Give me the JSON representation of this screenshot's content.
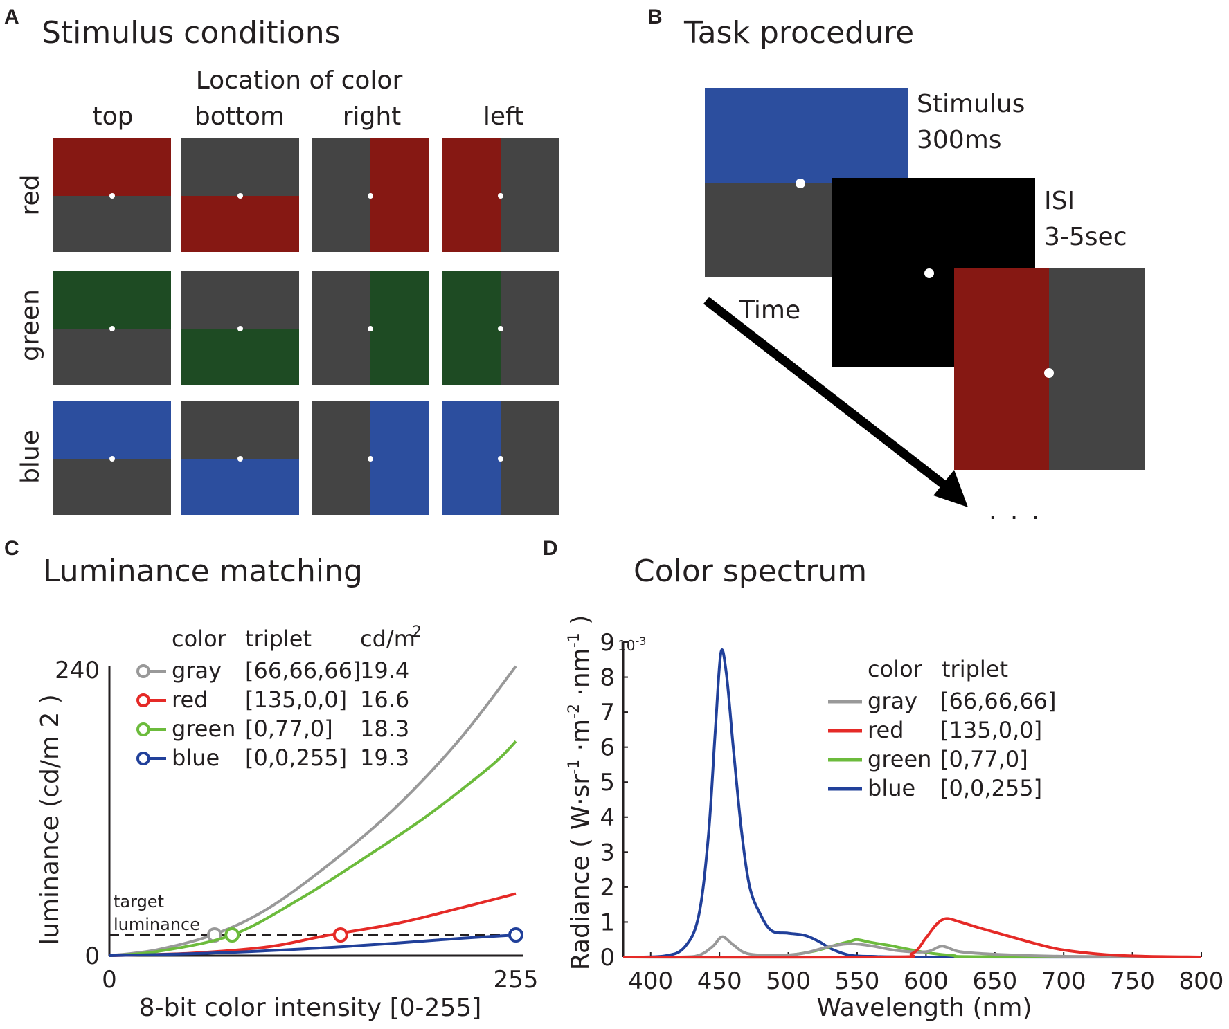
{
  "panelA": {
    "letter": "A",
    "title": "Stimulus conditions",
    "location_header": "Location of color",
    "columns": [
      "top",
      "bottom",
      "right",
      "left"
    ],
    "rows": [
      {
        "label": "red",
        "color": "#861813"
      },
      {
        "label": "green",
        "color": "#1e4b23"
      },
      {
        "label": "blue",
        "color": "#2c4e9e"
      }
    ],
    "gray_color": "#444444"
  },
  "panelB": {
    "letter": "B",
    "title": "Task procedure",
    "stimulus_label": "Stimulus",
    "stimulus_duration": "300ms",
    "isi_label": "ISI",
    "isi_duration": "3-5sec",
    "time_label": "Time",
    "ellipsis": ". . .",
    "blue": "#2c4e9e",
    "red": "#861813",
    "gray": "#444444",
    "black": "#000000"
  },
  "chart_data": [
    {
      "letter": "C",
      "title": "Luminance matching",
      "type": "line",
      "xlabel": "8-bit color intensity [0-255]",
      "ylabel": "luminance (cd/m 2 )",
      "xlim": [
        0,
        255
      ],
      "ylim": [
        0,
        240
      ],
      "xticks": [
        "0",
        "255"
      ],
      "yticks": [
        "0",
        "240"
      ],
      "target_label_line1": "target",
      "target_label_line2": "luminance",
      "target_luminance": 17.4,
      "legend_headers": {
        "color": "color",
        "triplet": "triplet",
        "unit": "cd/m",
        "unit_sup": "2"
      },
      "series": [
        {
          "name": "gray",
          "triplet": "[66,66,66]",
          "value": "19.4",
          "color": "#999999",
          "x": [
            0,
            30,
            66,
            100,
            140,
            180,
            220,
            255
          ],
          "y": [
            0,
            5,
            18,
            40,
            79,
            125,
            182,
            243
          ],
          "marker_x": 66,
          "marker_y": 17.4
        },
        {
          "name": "red",
          "triplet": "[135,0,0]",
          "value": "16.6",
          "color": "#e52a27",
          "x": [
            0,
            50,
            100,
            135,
            180,
            220,
            255
          ],
          "y": [
            0,
            2,
            7.5,
            16.6,
            27,
            40,
            52
          ],
          "marker_x": 145,
          "marker_y": 17.4
        },
        {
          "name": "green",
          "triplet": "[0,77,0]",
          "value": "18.3",
          "color": "#6cbb3c",
          "x": [
            0,
            30,
            77,
            120,
            160,
            200,
            240,
            255
          ],
          "y": [
            0,
            3.5,
            17.4,
            48,
            82,
            118,
            160,
            180
          ],
          "marker_x": 77,
          "marker_y": 17.4
        },
        {
          "name": "blue",
          "triplet": "[0,0,255]",
          "value": "19.3",
          "color": "#21409a",
          "x": [
            0,
            60,
            120,
            180,
            220,
            255
          ],
          "y": [
            0,
            2,
            5.5,
            10.5,
            14.5,
            17.4
          ],
          "marker_x": 255,
          "marker_y": 17.4
        }
      ]
    },
    {
      "letter": "D",
      "title": "Color spectrum",
      "type": "line",
      "xlabel": "Wavelength (nm)",
      "ylabel": "Radiance ( W·sr-1 ·m-2 ·nm-1 )",
      "ylabel_parts": [
        "Radiance ( W·sr",
        "-1",
        " ·m",
        "-2",
        " ·nm",
        "-1",
        " )"
      ],
      "xlim": [
        380,
        800
      ],
      "ylim": [
        0,
        9
      ],
      "xticks": [
        "400",
        "450",
        "500",
        "550",
        "600",
        "650",
        "700",
        "750",
        "800"
      ],
      "yticks": [
        "0",
        "1",
        "2",
        "3",
        "4",
        "5",
        "6",
        "7",
        "8",
        "9"
      ],
      "exponent_label": "10-3",
      "exponent_base": "10",
      "exponent_power": "-3",
      "legend_headers": {
        "color": "color",
        "triplet": "triplet"
      },
      "series": [
        {
          "name": "gray",
          "triplet": "[66,66,66]",
          "color": "#999999",
          "x": [
            380,
            420,
            435,
            445,
            452,
            460,
            470,
            490,
            510,
            530,
            545,
            560,
            580,
            600,
            610,
            615,
            625,
            650,
            700,
            800
          ],
          "y": [
            0,
            0,
            0.05,
            0.3,
            0.58,
            0.35,
            0.1,
            0.05,
            0.1,
            0.3,
            0.38,
            0.32,
            0.18,
            0.15,
            0.3,
            0.28,
            0.15,
            0.08,
            0.02,
            0
          ]
        },
        {
          "name": "red",
          "triplet": "[135,0,0]",
          "color": "#e52a27",
          "x": [
            380,
            570,
            590,
            600,
            608,
            615,
            625,
            640,
            660,
            680,
            700,
            730,
            760,
            800
          ],
          "y": [
            0,
            0,
            0.1,
            0.55,
            0.95,
            1.1,
            1.0,
            0.82,
            0.6,
            0.38,
            0.2,
            0.07,
            0.02,
            0
          ]
        },
        {
          "name": "green",
          "triplet": "[0,77,0]",
          "color": "#6cbb3c",
          "x": [
            380,
            480,
            500,
            520,
            535,
            545,
            550,
            560,
            575,
            590,
            605,
            620,
            640,
            800
          ],
          "y": [
            0,
            0,
            0.05,
            0.18,
            0.35,
            0.45,
            0.5,
            0.42,
            0.32,
            0.2,
            0.1,
            0.04,
            0.01,
            0
          ]
        },
        {
          "name": "blue",
          "triplet": "[0,0,255]",
          "color": "#21409a",
          "x": [
            380,
            410,
            425,
            435,
            442,
            447,
            451,
            455,
            460,
            466,
            472,
            480,
            488,
            500,
            512,
            522,
            532,
            545,
            560,
            600,
            800
          ],
          "y": [
            0,
            0.03,
            0.3,
            1.2,
            3.5,
            6.5,
            8.7,
            8.1,
            6.0,
            3.6,
            2.0,
            1.2,
            0.75,
            0.68,
            0.62,
            0.45,
            0.22,
            0.05,
            0.02,
            0,
            0
          ]
        }
      ]
    }
  ]
}
